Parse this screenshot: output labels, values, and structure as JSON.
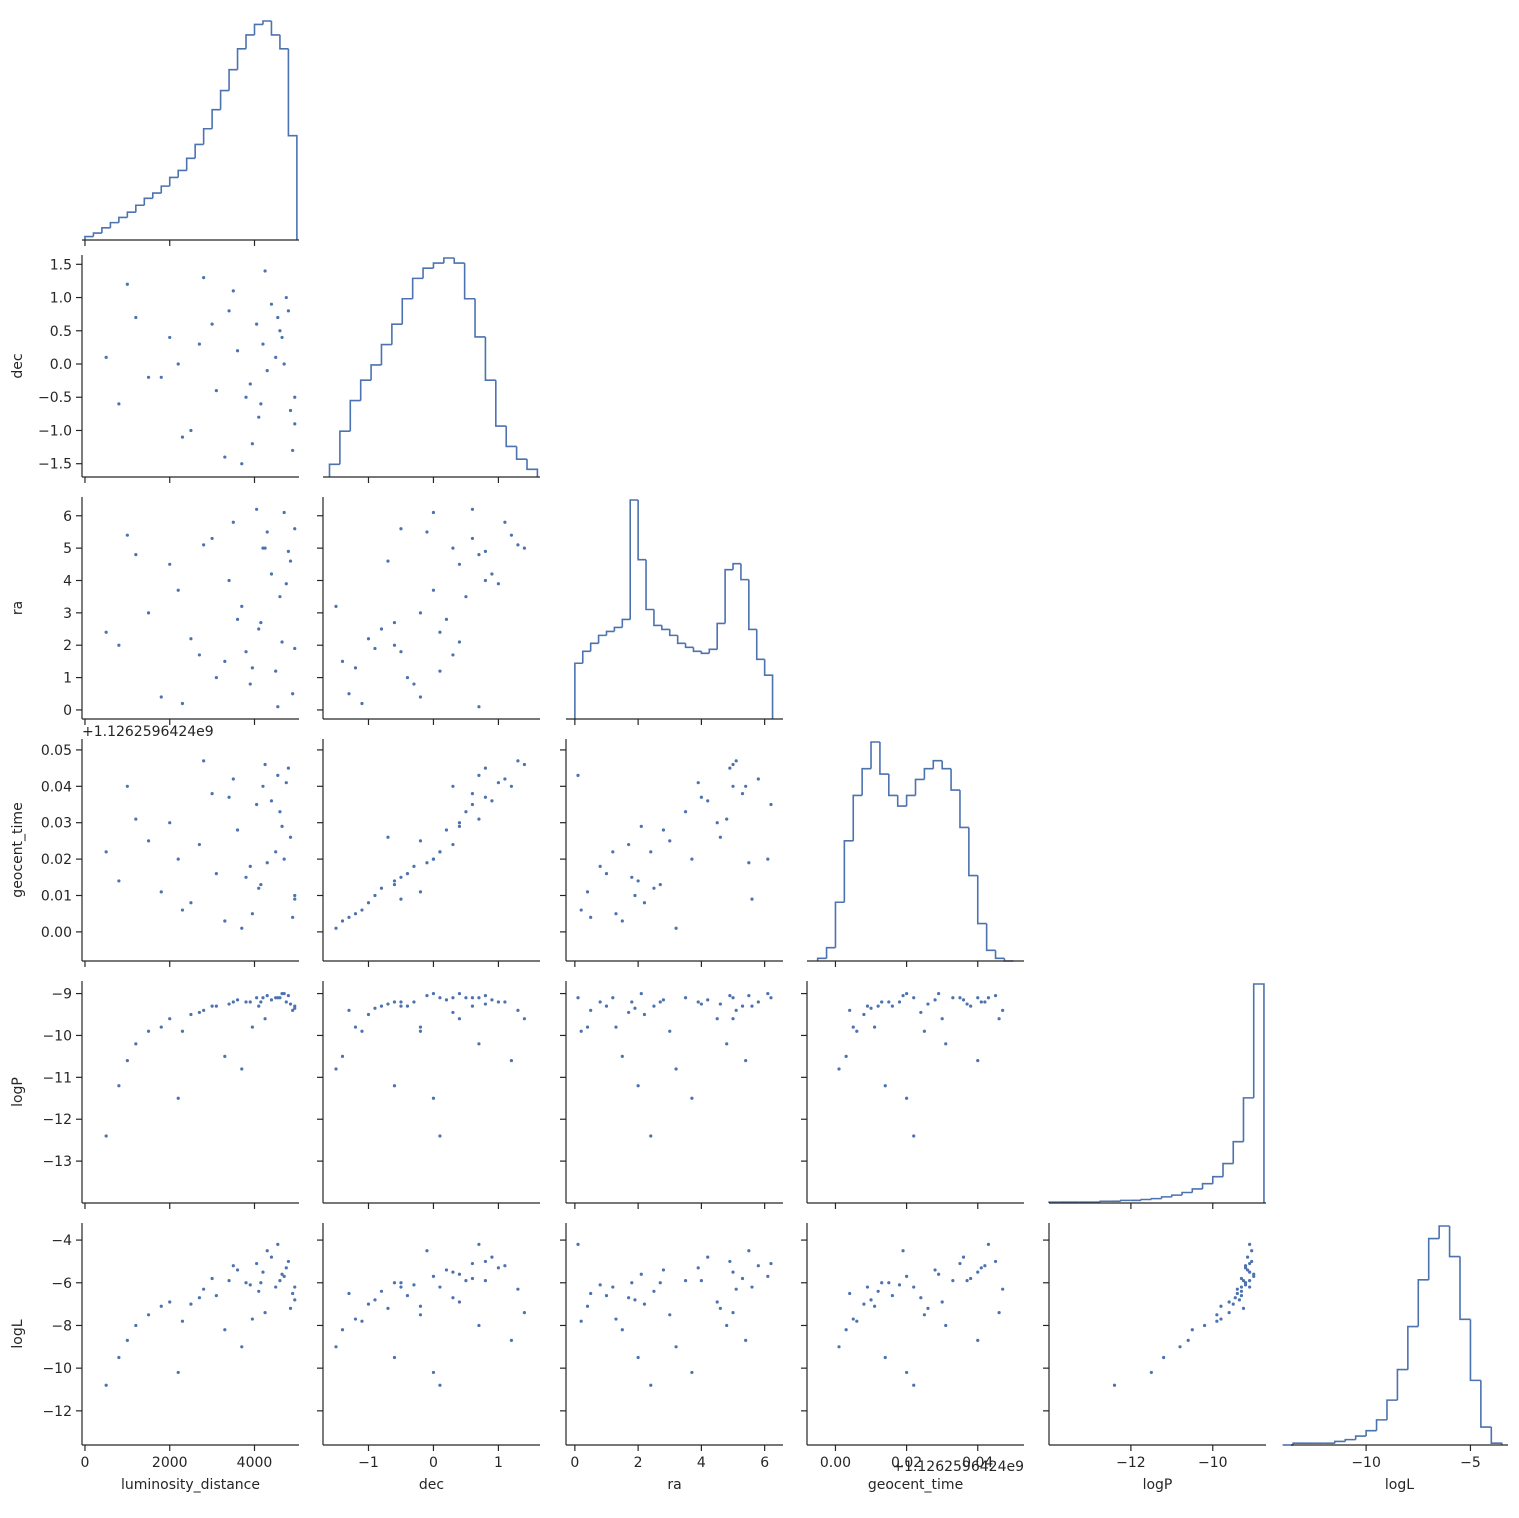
{
  "chart_data": {
    "type": "corner",
    "color": "#4c72b0",
    "variables": [
      {
        "name": "luminosity_distance",
        "lim": [
          -70,
          5050
        ],
        "xticks": [
          0,
          2000,
          4000
        ],
        "bins": [
          0,
          200,
          400,
          600,
          800,
          1000,
          1200,
          1400,
          1600,
          1800,
          2000,
          2200,
          2400,
          2600,
          2800,
          3000,
          3200,
          3400,
          3600,
          3800,
          4000,
          4200,
          4400,
          4600,
          4800,
          5000
        ],
        "counts": [
          2,
          4,
          7,
          10,
          13,
          16,
          20,
          24,
          27,
          31,
          36,
          40,
          47,
          55,
          64,
          75,
          86,
          98,
          110,
          118,
          124,
          126,
          118,
          110,
          60
        ],
        "samples": [
          4200,
          3800,
          4800,
          2500,
          4500,
          3000,
          1500,
          4900,
          3500,
          4100,
          2000,
          4700,
          3300,
          4400,
          800,
          4600,
          3900,
          2800,
          4950,
          3600,
          1200,
          4300,
          2300,
          4750,
          3100,
          4050,
          500,
          4850,
          2700,
          3700,
          4250,
          1800,
          4650,
          3400,
          4950,
          2200,
          3950,
          4550,
          1000,
          4150
        ]
      },
      {
        "name": "dec",
        "lim": [
          -1.7,
          1.64
        ],
        "xticks": [
          {
            "value": -1,
            "label": "−1"
          },
          0,
          1
        ],
        "yticks": [
          {
            "value": -1.5,
            "label": "−1.5"
          },
          {
            "value": -1,
            "label": "−1.0"
          },
          {
            "value": -0.5,
            "label": "−0.5"
          },
          {
            "value": 0,
            "label": "0.0"
          },
          0.5,
          {
            "value": 1,
            "label": "1.0"
          },
          1.5
        ],
        "bins": [
          -1.6,
          -1.44,
          -1.28,
          -1.12,
          -0.96,
          -0.8,
          -0.64,
          -0.48,
          -0.32,
          -0.16,
          0,
          0.16,
          0.32,
          0.48,
          0.64,
          0.8,
          0.96,
          1.12,
          1.28,
          1.44,
          1.6
        ],
        "counts": [
          5,
          18,
          30,
          38,
          44,
          52,
          60,
          70,
          78,
          82,
          84,
          86,
          84,
          70,
          55,
          38,
          20,
          12,
          7,
          3
        ],
        "samples": [
          0.3,
          -0.5,
          0.8,
          -1.0,
          0.1,
          0.6,
          -0.2,
          -1.3,
          1.1,
          -0.8,
          0.4,
          0.0,
          -1.4,
          0.9,
          -0.6,
          0.5,
          -0.3,
          1.3,
          -0.9,
          0.2,
          0.7,
          -0.1,
          -1.1,
          1.0,
          -0.4,
          0.6,
          0.1,
          -0.7,
          0.3,
          -1.5,
          1.4,
          -0.2,
          0.4,
          0.8,
          -0.5,
          0.0,
          -1.2,
          0.7,
          1.2,
          -0.6
        ]
      },
      {
        "name": "ra",
        "lim": [
          -0.28,
          6.58
        ],
        "xticks": [
          0,
          2,
          4,
          6
        ],
        "yticks": [
          0,
          1,
          2,
          3,
          4,
          5,
          6
        ],
        "bins": [
          0,
          0.25,
          0.5,
          0.75,
          1,
          1.25,
          1.5,
          1.75,
          2,
          2.25,
          2.5,
          2.75,
          3,
          3.25,
          3.5,
          3.75,
          4,
          4.25,
          4.5,
          4.75,
          5,
          5.25,
          5.5,
          5.75,
          6,
          6.25
        ],
        "counts": [
          28,
          34,
          38,
          42,
          44,
          46,
          50,
          110,
          80,
          55,
          47,
          45,
          42,
          38,
          36,
          34,
          33,
          35,
          48,
          75,
          78,
          70,
          45,
          30,
          22
        ],
        "samples": [
          5.0,
          1.8,
          4.9,
          2.2,
          1.2,
          5.3,
          3.0,
          0.5,
          5.8,
          2.5,
          4.5,
          6.1,
          1.5,
          4.2,
          2.0,
          3.5,
          0.8,
          5.1,
          1.9,
          2.8,
          4.8,
          5.5,
          0.2,
          3.9,
          1.0,
          6.2,
          2.4,
          4.6,
          1.7,
          3.2,
          5.0,
          0.4,
          2.1,
          4.0,
          5.6,
          3.7,
          1.3,
          0.1,
          5.4,
          2.7
        ]
      },
      {
        "name": "geocent_time",
        "lim": [
          -0.008,
          0.053
        ],
        "offset_label": "+1.1262596424e9",
        "xticks": [
          {
            "value": 0,
            "label": "0.00"
          },
          {
            "value": 0.02,
            "label": "0.02"
          },
          {
            "value": 0.04,
            "label": "0.04"
          }
        ],
        "yticks": [
          {
            "value": 0,
            "label": "0.00"
          },
          {
            "value": 0.01,
            "label": "0.01"
          },
          {
            "value": 0.02,
            "label": "0.02"
          },
          {
            "value": 0.03,
            "label": "0.03"
          },
          {
            "value": 0.04,
            "label": "0.04"
          },
          {
            "value": 0.05,
            "label": "0.05"
          }
        ],
        "bins": [
          -0.005,
          -0.0025,
          0,
          0.0025,
          0.005,
          0.0075,
          0.01,
          0.0125,
          0.015,
          0.0175,
          0.02,
          0.0225,
          0.025,
          0.0275,
          0.03,
          0.0325,
          0.035,
          0.0375,
          0.04,
          0.0425,
          0.045,
          0.0475,
          0.05
        ],
        "counts": [
          1,
          5,
          22,
          45,
          62,
          72,
          82,
          70,
          62,
          58,
          62,
          68,
          72,
          75,
          72,
          64,
          50,
          32,
          14,
          4,
          1,
          0
        ],
        "samples": [
          0.04,
          0.015,
          0.045,
          0.008,
          0.022,
          0.038,
          0.025,
          0.004,
          0.042,
          0.012,
          0.03,
          0.02,
          0.003,
          0.036,
          0.014,
          0.033,
          0.018,
          0.047,
          0.01,
          0.028,
          0.031,
          0.019,
          0.006,
          0.041,
          0.016,
          0.035,
          0.022,
          0.026,
          0.024,
          0.001,
          0.046,
          0.011,
          0.029,
          0.037,
          0.009,
          0.02,
          0.005,
          0.043,
          0.04,
          0.013
        ]
      },
      {
        "name": "logP",
        "lim": [
          -14,
          -8.7
        ],
        "xticks": [
          {
            "value": -12,
            "label": "−12"
          },
          {
            "value": -10,
            "label": "−10"
          }
        ],
        "yticks": [
          {
            "value": -9,
            "label": "−9"
          },
          {
            "value": -10,
            "label": "−10"
          },
          {
            "value": -11,
            "label": "−11"
          },
          {
            "value": -12,
            "label": "−12"
          },
          {
            "value": -13,
            "label": "−13"
          }
        ],
        "bins": [
          -14,
          -13.75,
          -13.5,
          -13.25,
          -13,
          -12.75,
          -12.5,
          -12.25,
          -12,
          -11.75,
          -11.5,
          -11.25,
          -11,
          -10.75,
          -10.5,
          -10.25,
          -10,
          -9.75,
          -9.5,
          -9.25,
          -9,
          -8.75
        ],
        "counts": [
          1,
          1,
          1,
          1,
          1,
          2,
          2,
          3,
          3,
          4,
          5,
          7,
          9,
          12,
          16,
          22,
          30,
          45,
          70,
          120,
          250
        ],
        "samples": [
          -9.1,
          -9.2,
          -9.05,
          -9.5,
          -9.1,
          -9.3,
          -9.9,
          -9.4,
          -9.2,
          -9.3,
          -9.6,
          -9.0,
          -10.5,
          -9.15,
          -11.2,
          -9.1,
          -9.2,
          -9.4,
          -9.35,
          -9.15,
          -10.2,
          -9.05,
          -9.9,
          -9.2,
          -9.3,
          -9.1,
          -12.4,
          -9.25,
          -9.45,
          -10.8,
          -9.6,
          -9.8,
          -9.0,
          -9.25,
          -9.3,
          -11.5,
          -9.8,
          -9.1,
          -10.6,
          -9.2
        ]
      },
      {
        "name": "logL",
        "lim": [
          -13.6,
          -3.2
        ],
        "xticks": [
          {
            "value": -10,
            "label": "−10"
          },
          {
            "value": -5,
            "label": "−5"
          }
        ],
        "yticks": [
          {
            "value": -4,
            "label": "−4"
          },
          {
            "value": -6,
            "label": "−6"
          },
          {
            "value": -8,
            "label": "−8"
          },
          {
            "value": -10,
            "label": "−10"
          },
          {
            "value": -12,
            "label": "−12"
          }
        ],
        "bins": [
          -14,
          -13.5,
          -13,
          -12.5,
          -12,
          -11.5,
          -11,
          -10.5,
          -10,
          -9.5,
          -9,
          -8.5,
          -8,
          -7.5,
          -7,
          -6.5,
          -6,
          -5.5,
          -5,
          -4.5,
          -4,
          -3.5
        ],
        "counts": [
          0,
          1,
          1,
          1,
          1,
          2,
          3,
          5,
          8,
          14,
          25,
          42,
          66,
          92,
          115,
          122,
          105,
          70,
          36,
          10,
          1
        ],
        "samples": [
          -5.5,
          -6.0,
          -5.0,
          -7.0,
          -6.2,
          -5.8,
          -7.5,
          -6.5,
          -5.2,
          -6.4,
          -6.9,
          -5.7,
          -8.2,
          -4.8,
          -9.5,
          -5.9,
          -6.1,
          -6.3,
          -6.8,
          -5.4,
          -8.0,
          -4.5,
          -7.8,
          -5.3,
          -6.6,
          -5.1,
          -10.8,
          -7.2,
          -6.7,
          -9.0,
          -7.4,
          -7.1,
          -5.6,
          -5.9,
          -6.2,
          -10.2,
          -7.7,
          -4.2,
          -8.7,
          -6.0
        ]
      }
    ]
  }
}
